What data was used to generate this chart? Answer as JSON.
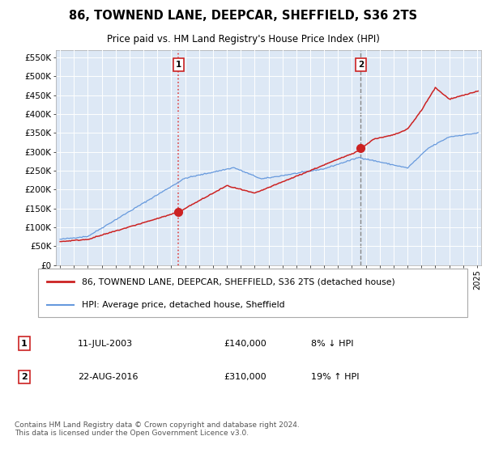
{
  "title": "86, TOWNEND LANE, DEEPCAR, SHEFFIELD, S36 2TS",
  "subtitle": "Price paid vs. HM Land Registry's House Price Index (HPI)",
  "ylim": [
    0,
    570000
  ],
  "yticks": [
    0,
    50000,
    100000,
    150000,
    200000,
    250000,
    300000,
    350000,
    400000,
    450000,
    500000,
    550000
  ],
  "ytick_labels": [
    "£0",
    "£50K",
    "£100K",
    "£150K",
    "£200K",
    "£250K",
    "£300K",
    "£350K",
    "£400K",
    "£450K",
    "£500K",
    "£550K"
  ],
  "xlim_left": 1994.7,
  "xlim_right": 2025.3,
  "red_line_color": "#cc2222",
  "blue_line_color": "#6699dd",
  "plot_bg_color": "#dde8f5",
  "grid_color": "#ffffff",
  "marker1_date": 2003.53,
  "marker1_value": 140000,
  "marker1_label": "1",
  "marker1_text": "11-JUL-2003",
  "marker1_price": "£140,000",
  "marker1_hpi": "8% ↓ HPI",
  "marker1_vline_color": "#dd4444",
  "marker1_vline_style": "dotted",
  "marker2_date": 2016.64,
  "marker2_value": 310000,
  "marker2_label": "2",
  "marker2_text": "22-AUG-2016",
  "marker2_price": "£310,000",
  "marker2_hpi": "19% ↑ HPI",
  "marker2_vline_color": "#888888",
  "marker2_vline_style": "dashed",
  "legend_line1": "86, TOWNEND LANE, DEEPCAR, SHEFFIELD, S36 2TS (detached house)",
  "legend_line2": "HPI: Average price, detached house, Sheffield",
  "footer": "Contains HM Land Registry data © Crown copyright and database right 2024.\nThis data is licensed under the Open Government Licence v3.0.",
  "bg_color": "#ffffff"
}
